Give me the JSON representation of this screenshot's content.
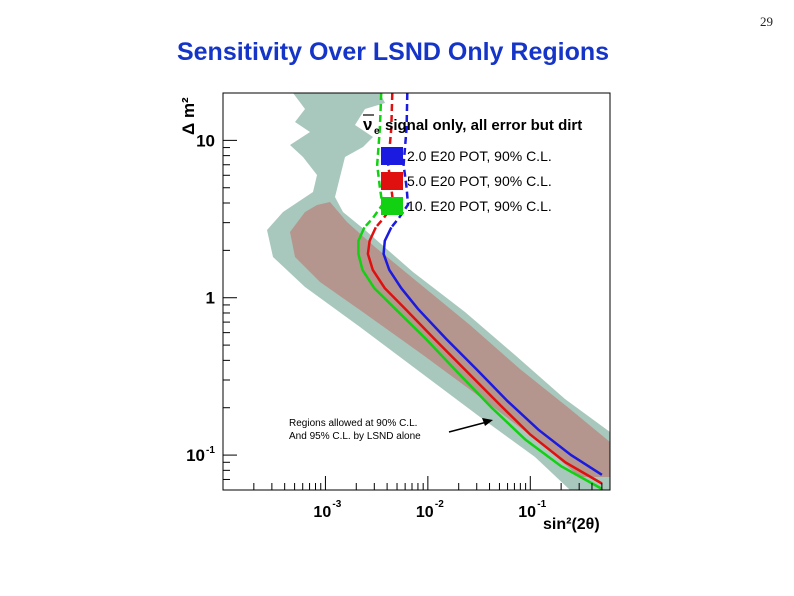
{
  "page_number": "29",
  "title": "Sensitivity Over LSND Only Regions",
  "chart_data": {
    "type": "line",
    "scale": "log-log",
    "xlabel": "sin²(2θ)",
    "ylabel": "Δ m²",
    "x_ticks": [
      {
        "value": 0.001,
        "base": "10",
        "exp": "-3"
      },
      {
        "value": 0.01,
        "base": "10",
        "exp": "-2"
      },
      {
        "value": 0.1,
        "base": "10",
        "exp": "-1"
      }
    ],
    "y_ticks": [
      {
        "value": 0.1,
        "base": "10",
        "exp": "-1"
      },
      {
        "value": 1,
        "base": "1",
        "exp": ""
      },
      {
        "value": 10,
        "base": "10",
        "exp": ""
      }
    ],
    "xlim": [
      0.0001,
      0.6
    ],
    "ylim": [
      0.06,
      20
    ],
    "plot_title": {
      "nu": "ν",
      "sub": "e",
      "text": "signal only, all error but dirt"
    },
    "legend_position": "top-right",
    "series": [
      {
        "name": "2.0 E20 POT, 90% C.L.",
        "color": "#1a1ae0",
        "points": [
          [
            0.0063,
            20
          ],
          [
            0.0062,
            12
          ],
          [
            0.0058,
            7
          ],
          [
            0.0062,
            5
          ],
          [
            0.0064,
            3.9
          ],
          [
            0.0052,
            3.2
          ],
          [
            0.0044,
            2.8
          ],
          [
            0.0038,
            2.3
          ],
          [
            0.0037,
            1.9
          ],
          [
            0.0042,
            1.5
          ],
          [
            0.0055,
            1.15
          ],
          [
            0.008,
            0.85
          ],
          [
            0.015,
            0.55
          ],
          [
            0.03,
            0.35
          ],
          [
            0.06,
            0.22
          ],
          [
            0.12,
            0.145
          ],
          [
            0.25,
            0.1
          ],
          [
            0.5,
            0.075
          ]
        ]
      },
      {
        "name": "5.0 E20 POT, 90% C.L.",
        "color": "#e01010",
        "points": [
          [
            0.0045,
            20
          ],
          [
            0.0044,
            12
          ],
          [
            0.0041,
            7
          ],
          [
            0.0044,
            5
          ],
          [
            0.0046,
            3.9
          ],
          [
            0.0037,
            3.2
          ],
          [
            0.0031,
            2.8
          ],
          [
            0.0027,
            2.3
          ],
          [
            0.0026,
            1.9
          ],
          [
            0.0029,
            1.5
          ],
          [
            0.0038,
            1.15
          ],
          [
            0.006,
            0.85
          ],
          [
            0.0115,
            0.55
          ],
          [
            0.024,
            0.34
          ],
          [
            0.05,
            0.21
          ],
          [
            0.1,
            0.135
          ],
          [
            0.22,
            0.09
          ],
          [
            0.5,
            0.066
          ]
        ]
      },
      {
        "name": "10. E20 POT, 90% C.L.",
        "color": "#12d012",
        "points": [
          [
            0.0035,
            20
          ],
          [
            0.0034,
            12
          ],
          [
            0.0032,
            7
          ],
          [
            0.0034,
            5
          ],
          [
            0.0036,
            3.9
          ],
          [
            0.0029,
            3.2
          ],
          [
            0.0024,
            2.8
          ],
          [
            0.0021,
            2.3
          ],
          [
            0.0021,
            1.9
          ],
          [
            0.0023,
            1.5
          ],
          [
            0.003,
            1.15
          ],
          [
            0.0048,
            0.85
          ],
          [
            0.0095,
            0.55
          ],
          [
            0.02,
            0.33
          ],
          [
            0.042,
            0.2
          ],
          [
            0.09,
            0.125
          ],
          [
            0.2,
            0.085
          ],
          [
            0.5,
            0.061
          ]
        ]
      }
    ],
    "regions": [
      {
        "name": "LSND 95% C.L.",
        "color": "#a9c8bd"
      },
      {
        "name": "LSND 90% C.L.",
        "color": "#b5968e"
      }
    ],
    "annotation": {
      "line1": "Regions allowed at 90% C.L.",
      "line2": "And 95% C.L. by LSND alone"
    }
  }
}
